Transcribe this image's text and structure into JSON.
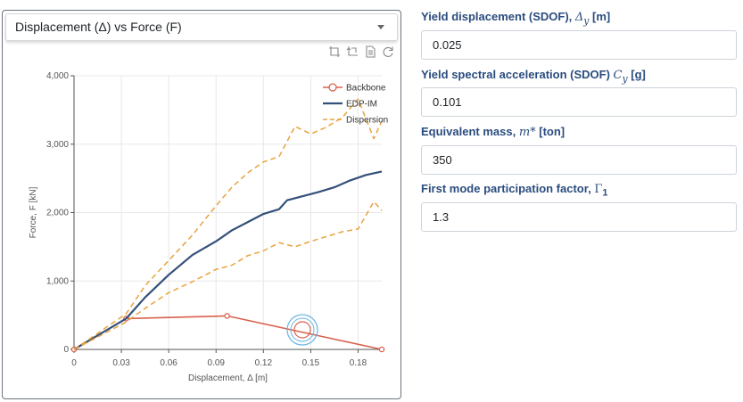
{
  "panel": {
    "dropdown_label": "Displacement (Δ) vs Force (F)"
  },
  "toolbar": {
    "icons": [
      "crop-icon",
      "crop-reset-icon",
      "data-view-icon",
      "restore-icon"
    ]
  },
  "form": {
    "fields": [
      {
        "label": "Yield displacement (SDOF), ",
        "symbol": "Δ",
        "sub": "y",
        "unit": " [m]",
        "value": "0.025"
      },
      {
        "label": "Yield spectral acceleration (SDOF) ",
        "symbol": "C",
        "sub": "y",
        "unit": " [g]",
        "value": "0.101"
      },
      {
        "label": "Equivalent mass, ",
        "symbol": "m*",
        "sub": "",
        "unit": " [ton]",
        "value": "350"
      },
      {
        "label": "First mode participation factor, ",
        "symbol": "Γ",
        "sub": "1",
        "unit": "",
        "value": "1.3"
      }
    ]
  },
  "chart_data": {
    "type": "line",
    "xlabel": "Displacement, Δ [m]",
    "ylabel": "Force, F [kN]",
    "xlim": [
      0,
      0.195
    ],
    "ylim": [
      0,
      4000
    ],
    "x_ticks": [
      0,
      0.03,
      0.06,
      0.09,
      0.12,
      0.15,
      0.18
    ],
    "x_tick_labels": [
      "0",
      "0.03",
      "0.06",
      "0.09",
      "0.12",
      "0.15",
      "0.18"
    ],
    "y_ticks": [
      0,
      1000,
      2000,
      3000,
      4000
    ],
    "y_tick_labels": [
      "0",
      "1,000",
      "2,000",
      "3,000",
      "4,000"
    ],
    "grid": true,
    "legend_position": "top-right",
    "colors": {
      "backbone": "#d9614c",
      "edp_im": "#34507a",
      "dispersion": "#e8a33d",
      "grid": "#e8e8e8",
      "axis": "#555555"
    },
    "series": [
      {
        "name": "Backbone",
        "style": "line-circle",
        "x": [
          0,
          0.033,
          0.097,
          0.195
        ],
        "y": [
          0,
          450,
          490,
          0
        ]
      },
      {
        "name": "EDP-IM",
        "style": "solid",
        "x": [
          0,
          0.033,
          0.045,
          0.06,
          0.075,
          0.09,
          0.1,
          0.11,
          0.12,
          0.13,
          0.135,
          0.145,
          0.155,
          0.165,
          0.175,
          0.185,
          0.195
        ],
        "y": [
          0,
          450,
          760,
          1090,
          1380,
          1580,
          1740,
          1860,
          1980,
          2050,
          2180,
          2240,
          2300,
          2370,
          2470,
          2550,
          2600
        ]
      },
      {
        "name": "Dispersion",
        "style": "dashed",
        "x": [
          0,
          0.033,
          0.045,
          0.06,
          0.075,
          0.09,
          0.1,
          0.11,
          0.12,
          0.13,
          0.14,
          0.15,
          0.16,
          0.17,
          0.18,
          0.19,
          0.195
        ],
        "y": [
          0,
          520,
          930,
          1300,
          1670,
          2100,
          2370,
          2580,
          2740,
          2820,
          3260,
          3150,
          3250,
          3390,
          3660,
          3080,
          3340
        ]
      },
      {
        "name": "",
        "style": "dashed",
        "x": [
          0,
          0.033,
          0.045,
          0.06,
          0.075,
          0.09,
          0.1,
          0.11,
          0.12,
          0.13,
          0.14,
          0.15,
          0.16,
          0.17,
          0.18,
          0.19,
          0.195
        ],
        "y": [
          0,
          400,
          600,
          830,
          990,
          1170,
          1230,
          1370,
          1440,
          1560,
          1500,
          1580,
          1650,
          1720,
          1760,
          2160,
          2030
        ]
      }
    ]
  }
}
